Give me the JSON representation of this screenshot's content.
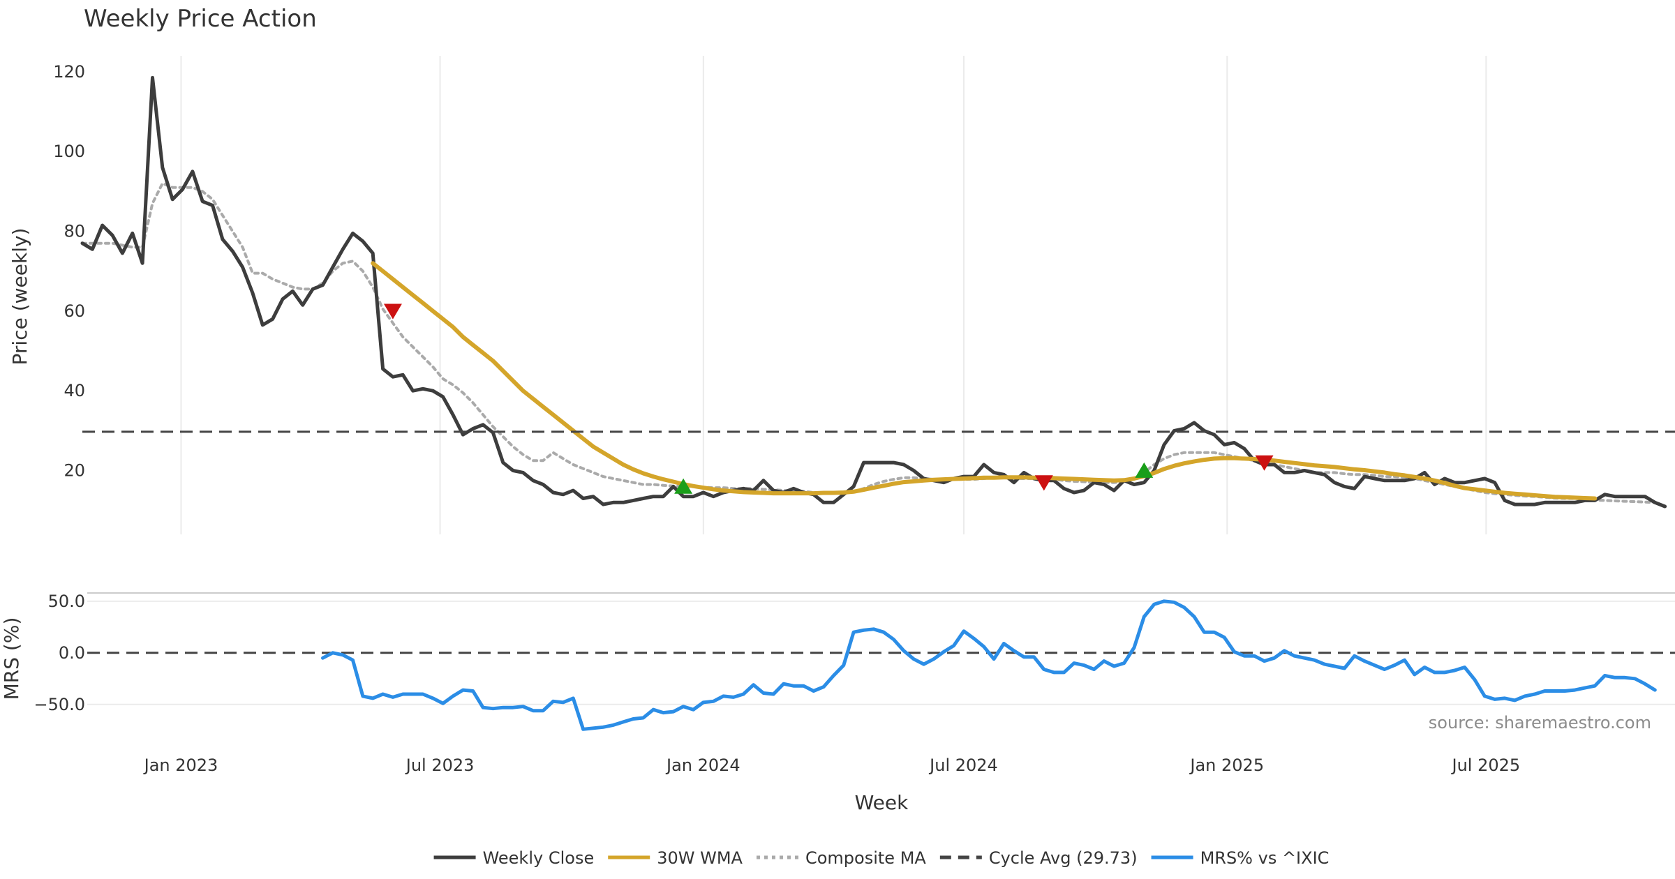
{
  "chart_data": {
    "type": "line",
    "title": "Weekly Price Action",
    "xlabel": "Week",
    "x_ticks": [
      "Jan 2023",
      "Jul 2023",
      "Jan 2024",
      "Jul 2024",
      "Jan 2025",
      "Jul 2025"
    ],
    "start_date": "2022-10-24",
    "weeks": 160,
    "price_panel": {
      "ylabel": "Price (weekly)",
      "ylim": [
        4,
        124
      ],
      "yticks": [
        20,
        40,
        60,
        80,
        100,
        120
      ],
      "grid": "vertical",
      "series": [
        {
          "name": "Weekly Close",
          "color": "#3d3d3d",
          "style": "solid",
          "start_week": 0,
          "values": [
            77,
            75.5,
            81.5,
            79,
            74.5,
            79.5,
            72,
            118.5,
            96,
            88,
            90.5,
            95,
            87.5,
            86.5,
            78,
            75,
            71,
            64.5,
            56.5,
            58,
            63,
            65,
            61.5,
            65.5,
            66.5,
            71,
            75.5,
            79.5,
            77.5,
            74.5,
            45.5,
            43.5,
            44,
            40,
            40.5,
            40,
            38.5,
            34,
            29,
            30.5,
            31.5,
            29.5,
            22,
            20,
            19.5,
            17.5,
            16.5,
            14.5,
            14,
            15,
            13,
            13.5,
            11.5,
            12,
            12,
            12.5,
            13,
            13.5,
            13.5,
            16,
            13.5,
            13.5,
            14.5,
            13.5,
            14.5,
            15,
            15.5,
            15,
            17.5,
            15,
            14.5,
            15.5,
            14.5,
            14,
            12,
            12,
            14,
            16,
            22,
            22,
            22,
            22,
            21.5,
            20,
            18,
            17.5,
            17,
            18,
            18.5,
            18.5,
            21.5,
            19.5,
            19,
            17,
            19.5,
            18,
            17.5,
            17.5,
            15.5,
            14.5,
            15,
            17,
            16.5,
            15,
            17.5,
            16.5,
            17,
            20,
            26.5,
            30,
            30.5,
            32,
            30,
            29,
            26.5,
            27,
            25.5,
            22.5,
            21.5,
            21.5,
            19.5,
            19.5,
            20,
            19.5,
            19,
            17,
            16,
            15.5,
            18.5,
            18,
            17.5,
            17.5,
            17.5,
            18,
            19.5,
            16.5,
            18,
            17,
            17,
            17.5,
            18,
            17,
            12.5,
            11.5,
            11.5,
            11.5,
            12,
            12,
            12,
            12,
            12.5,
            12.5,
            14,
            13.5,
            13.5,
            13.5,
            13.5,
            12,
            11
          ]
        },
        {
          "name": "30W WMA",
          "color": "#d4a52a",
          "style": "solid",
          "start_week": 29,
          "values": [
            72,
            70,
            68,
            66,
            64,
            62,
            60,
            58,
            56,
            53.5,
            51.5,
            49.5,
            47.5,
            45,
            42.5,
            40,
            38,
            36,
            34,
            32,
            30,
            28,
            26,
            24.5,
            23,
            21.5,
            20.3,
            19.3,
            18.5,
            17.8,
            17.2,
            16.6,
            16.1,
            15.7,
            15.3,
            15,
            14.8,
            14.6,
            14.5,
            14.4,
            14.3,
            14.3,
            14.3,
            14.3,
            14.3,
            14.4,
            14.4,
            14.5,
            14.7,
            15.2,
            15.7,
            16.2,
            16.7,
            17.1,
            17.3,
            17.5,
            17.7,
            17.8,
            17.9,
            18,
            18.1,
            18.2,
            18.2,
            18.3,
            18.3,
            18.3,
            18.2,
            18.2,
            18.1,
            18,
            17.9,
            17.8,
            17.7,
            17.6,
            17.5,
            17.6,
            18,
            18.6,
            19.4,
            20.4,
            21.2,
            21.8,
            22.3,
            22.7,
            23,
            23.1,
            23.1,
            23,
            22.9,
            22.7,
            22.5,
            22.2,
            21.9,
            21.6,
            21.3,
            21.1,
            20.9,
            20.6,
            20.3,
            20.1,
            19.8,
            19.5,
            19.1,
            18.8,
            18.4,
            18,
            17.5,
            16.9,
            16.2,
            15.6,
            15.3,
            15,
            14.7,
            14.4,
            14.2,
            14,
            13.8,
            13.6,
            13.4,
            13.3,
            13.2,
            13.1,
            13
          ]
        },
        {
          "name": "Composite MA",
          "color": "#aaaaaa",
          "style": "dotted",
          "start_week": 0,
          "values": [
            77,
            77,
            77,
            77,
            76.5,
            76,
            76,
            87,
            92,
            91,
            91,
            91,
            90,
            88,
            84,
            80,
            76,
            69.5,
            69.5,
            68,
            67,
            66,
            65.5,
            65.5,
            67,
            70,
            72,
            72.5,
            70,
            66,
            60.5,
            57,
            53.5,
            51,
            48.5,
            46,
            43,
            41.5,
            39.5,
            37,
            34,
            31,
            28.5,
            26,
            24,
            22.5,
            22.5,
            24.5,
            23,
            21.5,
            20.5,
            19.5,
            18.5,
            18,
            17.5,
            17,
            16.5,
            16.5,
            16.3,
            16.1,
            16,
            16,
            15.8,
            15.7,
            15.7,
            15.5,
            15.5,
            15.5,
            15.3,
            15.2,
            15,
            15,
            14.8,
            14.5,
            14.4,
            14.3,
            14.3,
            14.7,
            15.5,
            16.5,
            17.3,
            17.8,
            18.2,
            18.2,
            18,
            17.8,
            17.8,
            17.8,
            17.8,
            17.8,
            18,
            18.2,
            18.2,
            18,
            18,
            18,
            18,
            17.8,
            17.5,
            17.3,
            17.2,
            17,
            17,
            17,
            17.2,
            18,
            19.5,
            21.5,
            23,
            24,
            24.5,
            24.5,
            24.5,
            24.5,
            24,
            23.5,
            23,
            22.5,
            22,
            21.5,
            21,
            20.5,
            20,
            19.5,
            19.5,
            19.5,
            19.2,
            19,
            19,
            18.8,
            18.5,
            18.5,
            18.3,
            18,
            17.5,
            17,
            16.5,
            16,
            15.5,
            15,
            14.5,
            14.2,
            14,
            13.8,
            13.6,
            13.5,
            13.3,
            13.1,
            13,
            13,
            12.8,
            12.6,
            12.5,
            12.4,
            12.3,
            12.2,
            12.1,
            12
          ]
        },
        {
          "name": "Cycle Avg (29.73)",
          "color": "#444444",
          "style": "dashed",
          "constant": 29.73
        }
      ],
      "markers": [
        {
          "week": 31,
          "value": 60,
          "kind": "sell",
          "color": "#cc1111"
        },
        {
          "week": 60,
          "value": 16,
          "kind": "buy",
          "color": "#1a9e1a"
        },
        {
          "week": 96,
          "value": 17,
          "kind": "sell",
          "color": "#cc1111"
        },
        {
          "week": 106,
          "value": 20,
          "kind": "buy",
          "color": "#1a9e1a"
        },
        {
          "week": 118,
          "value": 22,
          "kind": "sell",
          "color": "#cc1111"
        }
      ]
    },
    "mrs_panel": {
      "ylabel": "MRS (%)",
      "ylim": [
        -88,
        58
      ],
      "yticks": [
        50,
        0,
        -50
      ],
      "ytick_labels": [
        "50.0",
        "0.0",
        "−50.0"
      ],
      "reference_line": 0,
      "series": [
        {
          "name": "MRS% vs ^IXIC",
          "color": "#2b8de6",
          "style": "solid",
          "start_week": 24,
          "values": [
            -5,
            0,
            -2,
            -7,
            -42,
            -44,
            -40,
            -43,
            -40,
            -40,
            -40,
            -44,
            -49,
            -42,
            -36,
            -37,
            -53,
            -54,
            -53,
            -53,
            -52,
            -56,
            -56,
            -47,
            -48,
            -44,
            -74,
            -73,
            -72,
            -70,
            -67,
            -64,
            -63,
            -55,
            -58,
            -57,
            -52,
            -55,
            -48,
            -47,
            -42,
            -43,
            -40,
            -31,
            -39,
            -40,
            -30,
            -32,
            -32,
            -37,
            -33,
            -22,
            -12,
            20,
            22,
            23,
            20,
            13,
            2,
            -6,
            -11,
            -6,
            1,
            7,
            21,
            14,
            6,
            -6,
            9,
            2,
            -4,
            -4,
            -16,
            -19,
            -19,
            -10,
            -12,
            -16,
            -8,
            -13,
            -10,
            5,
            35,
            47,
            50,
            49,
            44,
            35,
            20,
            20,
            15,
            1,
            -3,
            -3,
            -8,
            -5,
            2,
            -3,
            -5,
            -7,
            -11,
            -13,
            -15,
            -3,
            -8,
            -12,
            -16,
            -12,
            -7,
            -21,
            -14,
            -19,
            -19,
            -17,
            -14,
            -26,
            -42,
            -45,
            -44,
            -46,
            -42,
            -40,
            -37,
            -37,
            -37,
            -36,
            -34,
            -32,
            -22,
            -24,
            -24,
            -25,
            -30,
            -36
          ]
        }
      ]
    },
    "legend": [
      {
        "label": "Weekly Close",
        "color": "#3d3d3d",
        "style": "solid"
      },
      {
        "label": "30W WMA",
        "color": "#d4a52a",
        "style": "solid"
      },
      {
        "label": "Composite MA",
        "color": "#aaaaaa",
        "style": "dotted"
      },
      {
        "label": "Cycle Avg (29.73)",
        "color": "#444444",
        "style": "dashed"
      },
      {
        "label": "MRS% vs ^IXIC",
        "color": "#2b8de6",
        "style": "solid"
      }
    ],
    "legend_position": "bottom-center",
    "source_note": "source: sharemaestro.com"
  }
}
